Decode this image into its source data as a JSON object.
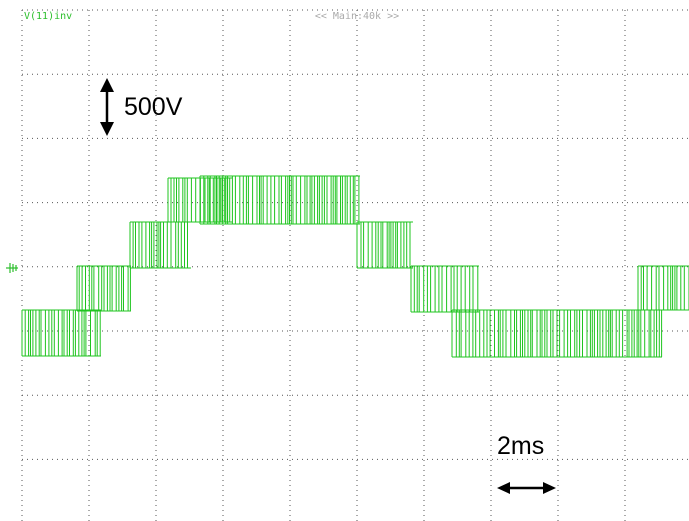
{
  "header": {
    "channel": "V(11)inv",
    "timebase": "<< Main:40k >>"
  },
  "annotations": {
    "voltage_scale": "500V",
    "time_scale": "2ms"
  }
}
